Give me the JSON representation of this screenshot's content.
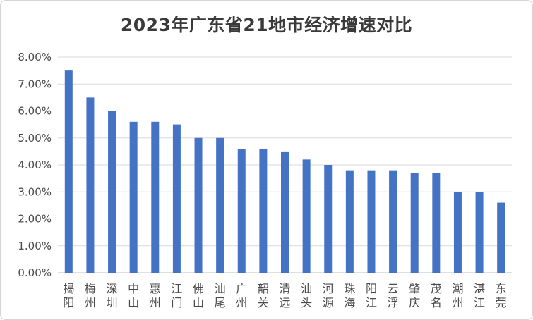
{
  "chart_data": {
    "type": "bar",
    "title": "2023年广东省21地市经济增速对比",
    "xlabel": "",
    "ylabel": "",
    "ylim": [
      0,
      8
    ],
    "yticks": [
      "0.00%",
      "1.00%",
      "2.00%",
      "3.00%",
      "4.00%",
      "5.00%",
      "6.00%",
      "7.00%",
      "8.00%"
    ],
    "grid": true,
    "bar_color": "#4472c4",
    "categories": [
      "揭阳",
      "梅州",
      "深圳",
      "中山",
      "惠州",
      "江门",
      "佛山",
      "汕尾",
      "广州",
      "韶关",
      "清远",
      "汕头",
      "河源",
      "珠海",
      "阳江",
      "云浮",
      "肇庆",
      "茂名",
      "潮州",
      "湛江",
      "东莞"
    ],
    "values": [
      7.5,
      6.5,
      6.0,
      5.6,
      5.6,
      5.5,
      5.0,
      5.0,
      4.6,
      4.6,
      4.5,
      4.2,
      4.0,
      3.8,
      3.8,
      3.8,
      3.7,
      3.7,
      3.0,
      3.0,
      2.6
    ]
  },
  "colors": {
    "bar": "#4472c4",
    "grid": "#d9d9d9",
    "axis": "#bfbfbf"
  }
}
